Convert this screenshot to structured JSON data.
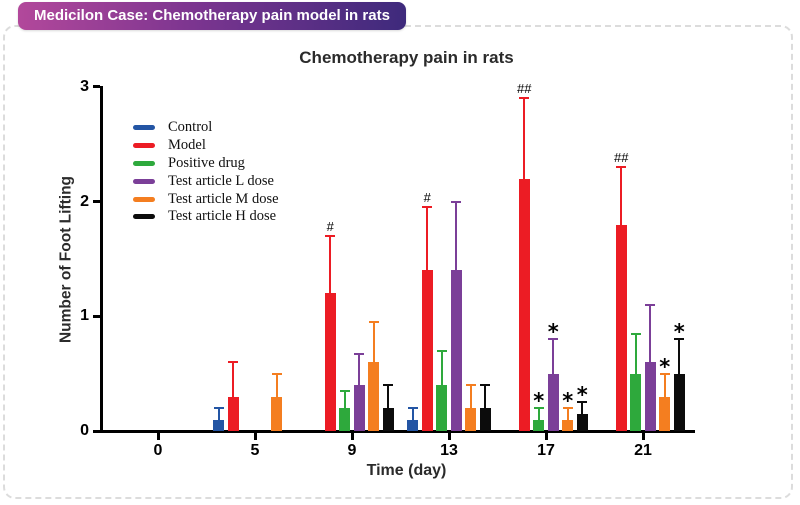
{
  "badge": {
    "text": "Medicilon Case: Chemotherapy pain model in rats"
  },
  "chart_data": {
    "type": "bar",
    "title": "Chemotherapy pain in rats",
    "xlabel": "Time (day)",
    "ylabel": "Number of Foot Lifting",
    "ylim": [
      0,
      3
    ],
    "yticks": [
      0,
      1,
      2,
      3
    ],
    "categories": [
      "0",
      "5",
      "9",
      "13",
      "17",
      "21"
    ],
    "grid": false,
    "legend_position": "upper-left-inside",
    "error_bars": true,
    "series": [
      {
        "name": "Control",
        "color": "#2355a4",
        "values": [
          0,
          0.1,
          0,
          0.1,
          0,
          0
        ],
        "errors": [
          0,
          0.1,
          0,
          0.1,
          0,
          0
        ],
        "annotations": [
          "",
          "",
          "",
          "",
          "",
          ""
        ]
      },
      {
        "name": "Model",
        "color": "#ec1c24",
        "values": [
          0,
          0.3,
          1.2,
          1.4,
          2.2,
          1.8
        ],
        "errors": [
          0,
          0.3,
          0.5,
          0.55,
          0.7,
          0.5
        ],
        "annotations": [
          "",
          "",
          "#",
          "#",
          "##",
          "##"
        ]
      },
      {
        "name": "Positive drug",
        "color": "#2ea93c",
        "values": [
          0,
          0,
          0.2,
          0.4,
          0.1,
          0.5
        ],
        "errors": [
          0,
          0,
          0.15,
          0.3,
          0.1,
          0.35
        ],
        "annotations": [
          "",
          "",
          "",
          "",
          "*",
          ""
        ]
      },
      {
        "name": "Test article L dose",
        "color": "#7b3f98",
        "values": [
          0,
          0,
          0.4,
          1.4,
          0.5,
          0.6
        ],
        "errors": [
          0,
          0,
          0.27,
          0.6,
          0.3,
          0.5
        ],
        "annotations": [
          "",
          "",
          "",
          "",
          "*",
          ""
        ]
      },
      {
        "name": "Test article M dose",
        "color": "#f47e20",
        "values": [
          0,
          0.3,
          0.6,
          0.2,
          0.1,
          0.3
        ],
        "errors": [
          0,
          0.2,
          0.35,
          0.2,
          0.1,
          0.2
        ],
        "annotations": [
          "",
          "",
          "",
          "",
          "*",
          "*"
        ]
      },
      {
        "name": "Test article H dose",
        "color": "#0c0c0c",
        "values": [
          0,
          0,
          0.2,
          0.2,
          0.15,
          0.5
        ],
        "errors": [
          0,
          0,
          0.2,
          0.2,
          0.1,
          0.3
        ],
        "annotations": [
          "",
          "",
          "",
          "",
          "*",
          "*"
        ]
      }
    ]
  }
}
